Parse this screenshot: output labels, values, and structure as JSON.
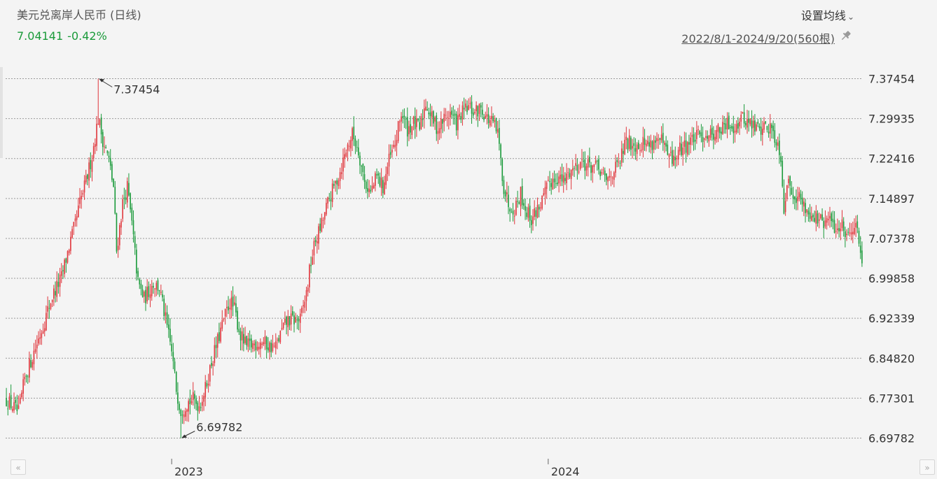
{
  "header": {
    "title": "美元兑离岸人民币 (日线)",
    "last_price": "7.04141",
    "change_pct": "-0.42%",
    "settings_label": "设置均线",
    "date_range": "2022/8/1-2024/9/20(560根)"
  },
  "colors": {
    "up": "#e0363c",
    "down": "#1a9a3a",
    "grid": "#9a9a9a",
    "text": "#333333"
  },
  "icons": {
    "settings_chevron": "chevron-down-icon",
    "pin": "pin-icon",
    "nav_left": "double-chevron-left-icon",
    "nav_right": "double-chevron-right-icon"
  },
  "chart_data": {
    "type": "candlestick",
    "x_range": [
      "2022-08-01",
      "2024-09-20"
    ],
    "bar_count": 560,
    "ylim": [
      6.69782,
      7.37454
    ],
    "yticks": [
      "7.37454",
      "7.29935",
      "7.22416",
      "7.14897",
      "7.07378",
      "6.99858",
      "6.92339",
      "6.84820",
      "6.77301",
      "6.69782"
    ],
    "xticks": [
      {
        "label": "2023",
        "index": 108
      },
      {
        "label": "2024",
        "index": 354
      }
    ],
    "annotations": [
      {
        "label": "7.37454",
        "index": 60,
        "value": 7.37454,
        "type": "high"
      },
      {
        "label": "6.69782",
        "index": 114,
        "value": 6.69782,
        "type": "low"
      }
    ],
    "close_path": [
      [
        0,
        6.77
      ],
      [
        8,
        6.745
      ],
      [
        12,
        6.81
      ],
      [
        18,
        6.86
      ],
      [
        24,
        6.91
      ],
      [
        30,
        6.965
      ],
      [
        36,
        7.0
      ],
      [
        42,
        7.07
      ],
      [
        45,
        7.1
      ],
      [
        48,
        7.14
      ],
      [
        52,
        7.18
      ],
      [
        56,
        7.23
      ],
      [
        60,
        7.3
      ],
      [
        63,
        7.26
      ],
      [
        67,
        7.22
      ],
      [
        70,
        7.17
      ],
      [
        72,
        7.05
      ],
      [
        76,
        7.14
      ],
      [
        79,
        7.17
      ],
      [
        82,
        7.1
      ],
      [
        86,
        6.99
      ],
      [
        90,
        6.96
      ],
      [
        96,
        6.99
      ],
      [
        100,
        6.98
      ],
      [
        104,
        6.92
      ],
      [
        108,
        6.86
      ],
      [
        111,
        6.79
      ],
      [
        114,
        6.75
      ],
      [
        118,
        6.765
      ],
      [
        122,
        6.77
      ],
      [
        126,
        6.76
      ],
      [
        130,
        6.79
      ],
      [
        134,
        6.84
      ],
      [
        138,
        6.88
      ],
      [
        142,
        6.92
      ],
      [
        146,
        6.955
      ],
      [
        149,
        6.94
      ],
      [
        153,
        6.89
      ],
      [
        157,
        6.87
      ],
      [
        162,
        6.875
      ],
      [
        167,
        6.88
      ],
      [
        172,
        6.87
      ],
      [
        176,
        6.87
      ],
      [
        180,
        6.9
      ],
      [
        184,
        6.92
      ],
      [
        188,
        6.92
      ],
      [
        192,
        6.92
      ],
      [
        196,
        6.97
      ],
      [
        199,
        7.03
      ],
      [
        202,
        7.07
      ],
      [
        206,
        7.1
      ],
      [
        210,
        7.14
      ],
      [
        214,
        7.17
      ],
      [
        218,
        7.2
      ],
      [
        222,
        7.24
      ],
      [
        226,
        7.27
      ],
      [
        230,
        7.24
      ],
      [
        234,
        7.18
      ],
      [
        238,
        7.16
      ],
      [
        242,
        7.19
      ],
      [
        246,
        7.17
      ],
      [
        250,
        7.22
      ],
      [
        254,
        7.25
      ],
      [
        258,
        7.31
      ],
      [
        262,
        7.28
      ],
      [
        266,
        7.29
      ],
      [
        270,
        7.28
      ],
      [
        274,
        7.33
      ],
      [
        278,
        7.3
      ],
      [
        282,
        7.28
      ],
      [
        286,
        7.3
      ],
      [
        290,
        7.31
      ],
      [
        294,
        7.29
      ],
      [
        298,
        7.31
      ],
      [
        302,
        7.32
      ],
      [
        306,
        7.31
      ],
      [
        310,
        7.32
      ],
      [
        314,
        7.3
      ],
      [
        318,
        7.29
      ],
      [
        321,
        7.27
      ],
      [
        323,
        7.22
      ],
      [
        325,
        7.17
      ],
      [
        328,
        7.14
      ],
      [
        332,
        7.13
      ],
      [
        336,
        7.16
      ],
      [
        339,
        7.13
      ],
      [
        343,
        7.11
      ],
      [
        347,
        7.13
      ],
      [
        351,
        7.15
      ],
      [
        355,
        7.18
      ],
      [
        360,
        7.19
      ],
      [
        364,
        7.18
      ],
      [
        368,
        7.2
      ],
      [
        372,
        7.21
      ],
      [
        376,
        7.22
      ],
      [
        380,
        7.21
      ],
      [
        384,
        7.21
      ],
      [
        388,
        7.2
      ],
      [
        392,
        7.18
      ],
      [
        396,
        7.2
      ],
      [
        400,
        7.21
      ],
      [
        404,
        7.25
      ],
      [
        408,
        7.255
      ],
      [
        412,
        7.25
      ],
      [
        416,
        7.255
      ],
      [
        420,
        7.25
      ],
      [
        424,
        7.26
      ],
      [
        428,
        7.255
      ],
      [
        432,
        7.23
      ],
      [
        436,
        7.22
      ],
      [
        440,
        7.24
      ],
      [
        444,
        7.25
      ],
      [
        448,
        7.26
      ],
      [
        452,
        7.265
      ],
      [
        456,
        7.27
      ],
      [
        460,
        7.27
      ],
      [
        464,
        7.275
      ],
      [
        468,
        7.28
      ],
      [
        472,
        7.29
      ],
      [
        476,
        7.285
      ],
      [
        480,
        7.3
      ],
      [
        484,
        7.295
      ],
      [
        488,
        7.285
      ],
      [
        492,
        7.28
      ],
      [
        496,
        7.285
      ],
      [
        500,
        7.28
      ],
      [
        503,
        7.26
      ],
      [
        506,
        7.23
      ],
      [
        508,
        7.13
      ],
      [
        510,
        7.18
      ],
      [
        514,
        7.16
      ],
      [
        518,
        7.15
      ],
      [
        522,
        7.13
      ],
      [
        526,
        7.12
      ],
      [
        530,
        7.11
      ],
      [
        534,
        7.1
      ],
      [
        538,
        7.11
      ],
      [
        542,
        7.09
      ],
      [
        546,
        7.1
      ],
      [
        550,
        7.08
      ],
      [
        553,
        7.1
      ],
      [
        556,
        7.09
      ],
      [
        559,
        7.04
      ]
    ]
  }
}
